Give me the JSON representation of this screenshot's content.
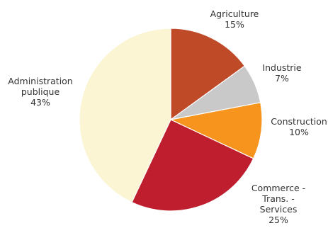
{
  "chart_data": {
    "type": "pie",
    "title": "",
    "slices": [
      {
        "name": "Agriculture",
        "label_lines": [
          "Agriculture",
          "15%"
        ],
        "value": 15,
        "color": "#BF4A28"
      },
      {
        "name": "Industrie",
        "label_lines": [
          "Industrie",
          "7%"
        ],
        "value": 7,
        "color": "#C9C9C9"
      },
      {
        "name": "Construction",
        "label_lines": [
          "Construction",
          "10%"
        ],
        "value": 10,
        "color": "#F7941E"
      },
      {
        "name": "Commerce - Trans. - Services",
        "label_lines": [
          "Commerce -",
          "Trans. -",
          "Services",
          "25%"
        ],
        "value": 25,
        "color": "#BE1E2D"
      },
      {
        "name": "Administration publique",
        "label_lines": [
          "Administration",
          "publique",
          "43%"
        ],
        "value": 43,
        "color": "#FBF5D3"
      }
    ],
    "start_angle_deg": 0,
    "direction": "clockwise",
    "legend": "none",
    "grid": false
  }
}
